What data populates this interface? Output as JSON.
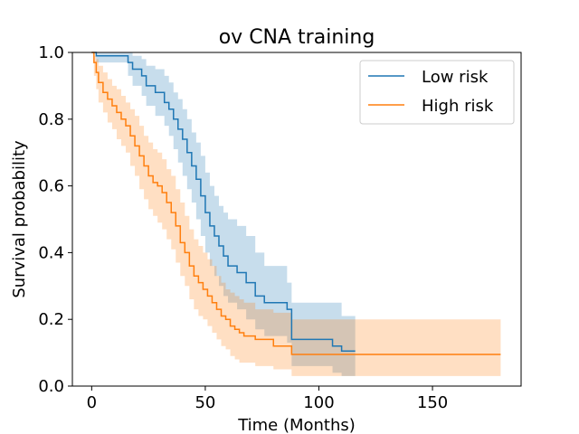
{
  "chart_data": {
    "type": "line",
    "title": "ov CNA training",
    "xlabel": "Time (Months)",
    "ylabel": "Survival probability",
    "xlim": [
      -8.5,
      189
    ],
    "ylim": [
      0,
      1
    ],
    "xticks": [
      0,
      50,
      100,
      150
    ],
    "yticks": [
      0.0,
      0.2,
      0.4,
      0.6,
      0.8,
      1.0
    ],
    "xtick_labels": [
      "0",
      "50",
      "100",
      "150"
    ],
    "ytick_labels": [
      "0.0",
      "0.2",
      "0.4",
      "0.6",
      "0.8",
      "1.0"
    ],
    "legend_position": "top-right",
    "grid": false,
    "series": [
      {
        "name": "Low risk",
        "color": "#1f77b4",
        "step_x": [
          0,
          2,
          16,
          18,
          22,
          24,
          28,
          32,
          34,
          36,
          38,
          40,
          42,
          44,
          46,
          48,
          50,
          52,
          54,
          56,
          58,
          60,
          64,
          68,
          72,
          76,
          86,
          88,
          106,
          110,
          116
        ],
        "step_y": [
          1.0,
          0.99,
          0.97,
          0.95,
          0.93,
          0.9,
          0.88,
          0.85,
          0.83,
          0.8,
          0.77,
          0.74,
          0.7,
          0.66,
          0.62,
          0.57,
          0.52,
          0.48,
          0.45,
          0.42,
          0.39,
          0.36,
          0.34,
          0.31,
          0.27,
          0.25,
          0.23,
          0.14,
          0.12,
          0.105,
          0.105
        ],
        "ci_lower": [
          1.0,
          0.97,
          0.93,
          0.9,
          0.87,
          0.84,
          0.81,
          0.78,
          0.75,
          0.71,
          0.67,
          0.63,
          0.59,
          0.55,
          0.5,
          0.45,
          0.4,
          0.36,
          0.33,
          0.3,
          0.27,
          0.25,
          0.23,
          0.2,
          0.17,
          0.15,
          0.13,
          0.06,
          0.04,
          0.03,
          0.03
        ],
        "ci_upper": [
          1.0,
          1.0,
          1.0,
          0.99,
          0.98,
          0.96,
          0.95,
          0.93,
          0.91,
          0.88,
          0.86,
          0.83,
          0.8,
          0.76,
          0.73,
          0.69,
          0.64,
          0.6,
          0.57,
          0.54,
          0.52,
          0.5,
          0.48,
          0.45,
          0.4,
          0.36,
          0.31,
          0.25,
          0.25,
          0.21,
          0.21
        ]
      },
      {
        "name": "High risk",
        "color": "#ff7f0e",
        "step_x": [
          0,
          1,
          2,
          3,
          5,
          7,
          9,
          11,
          13,
          15,
          17,
          19,
          21,
          23,
          25,
          27,
          29,
          31,
          33,
          35,
          37,
          39,
          41,
          43,
          45,
          47,
          49,
          51,
          53,
          55,
          57,
          59,
          61,
          63,
          65,
          67,
          72,
          80,
          88,
          180
        ],
        "step_y": [
          1.0,
          0.97,
          0.94,
          0.91,
          0.88,
          0.86,
          0.84,
          0.82,
          0.8,
          0.78,
          0.75,
          0.72,
          0.69,
          0.66,
          0.63,
          0.61,
          0.6,
          0.58,
          0.55,
          0.52,
          0.48,
          0.43,
          0.4,
          0.36,
          0.33,
          0.31,
          0.29,
          0.27,
          0.25,
          0.23,
          0.21,
          0.2,
          0.18,
          0.17,
          0.16,
          0.15,
          0.14,
          0.12,
          0.095,
          0.095
        ],
        "ci_lower": [
          1.0,
          0.93,
          0.89,
          0.85,
          0.82,
          0.79,
          0.77,
          0.74,
          0.72,
          0.7,
          0.66,
          0.63,
          0.59,
          0.56,
          0.53,
          0.51,
          0.49,
          0.47,
          0.44,
          0.41,
          0.37,
          0.33,
          0.3,
          0.26,
          0.23,
          0.21,
          0.2,
          0.18,
          0.16,
          0.14,
          0.12,
          0.11,
          0.09,
          0.08,
          0.07,
          0.07,
          0.06,
          0.05,
          0.03,
          0.03
        ],
        "ci_upper": [
          1.0,
          0.99,
          0.98,
          0.96,
          0.94,
          0.92,
          0.9,
          0.89,
          0.87,
          0.85,
          0.83,
          0.81,
          0.78,
          0.75,
          0.73,
          0.71,
          0.7,
          0.68,
          0.65,
          0.63,
          0.59,
          0.55,
          0.51,
          0.47,
          0.44,
          0.42,
          0.4,
          0.38,
          0.36,
          0.33,
          0.31,
          0.29,
          0.28,
          0.27,
          0.26,
          0.25,
          0.23,
          0.22,
          0.2,
          0.2
        ]
      }
    ]
  }
}
